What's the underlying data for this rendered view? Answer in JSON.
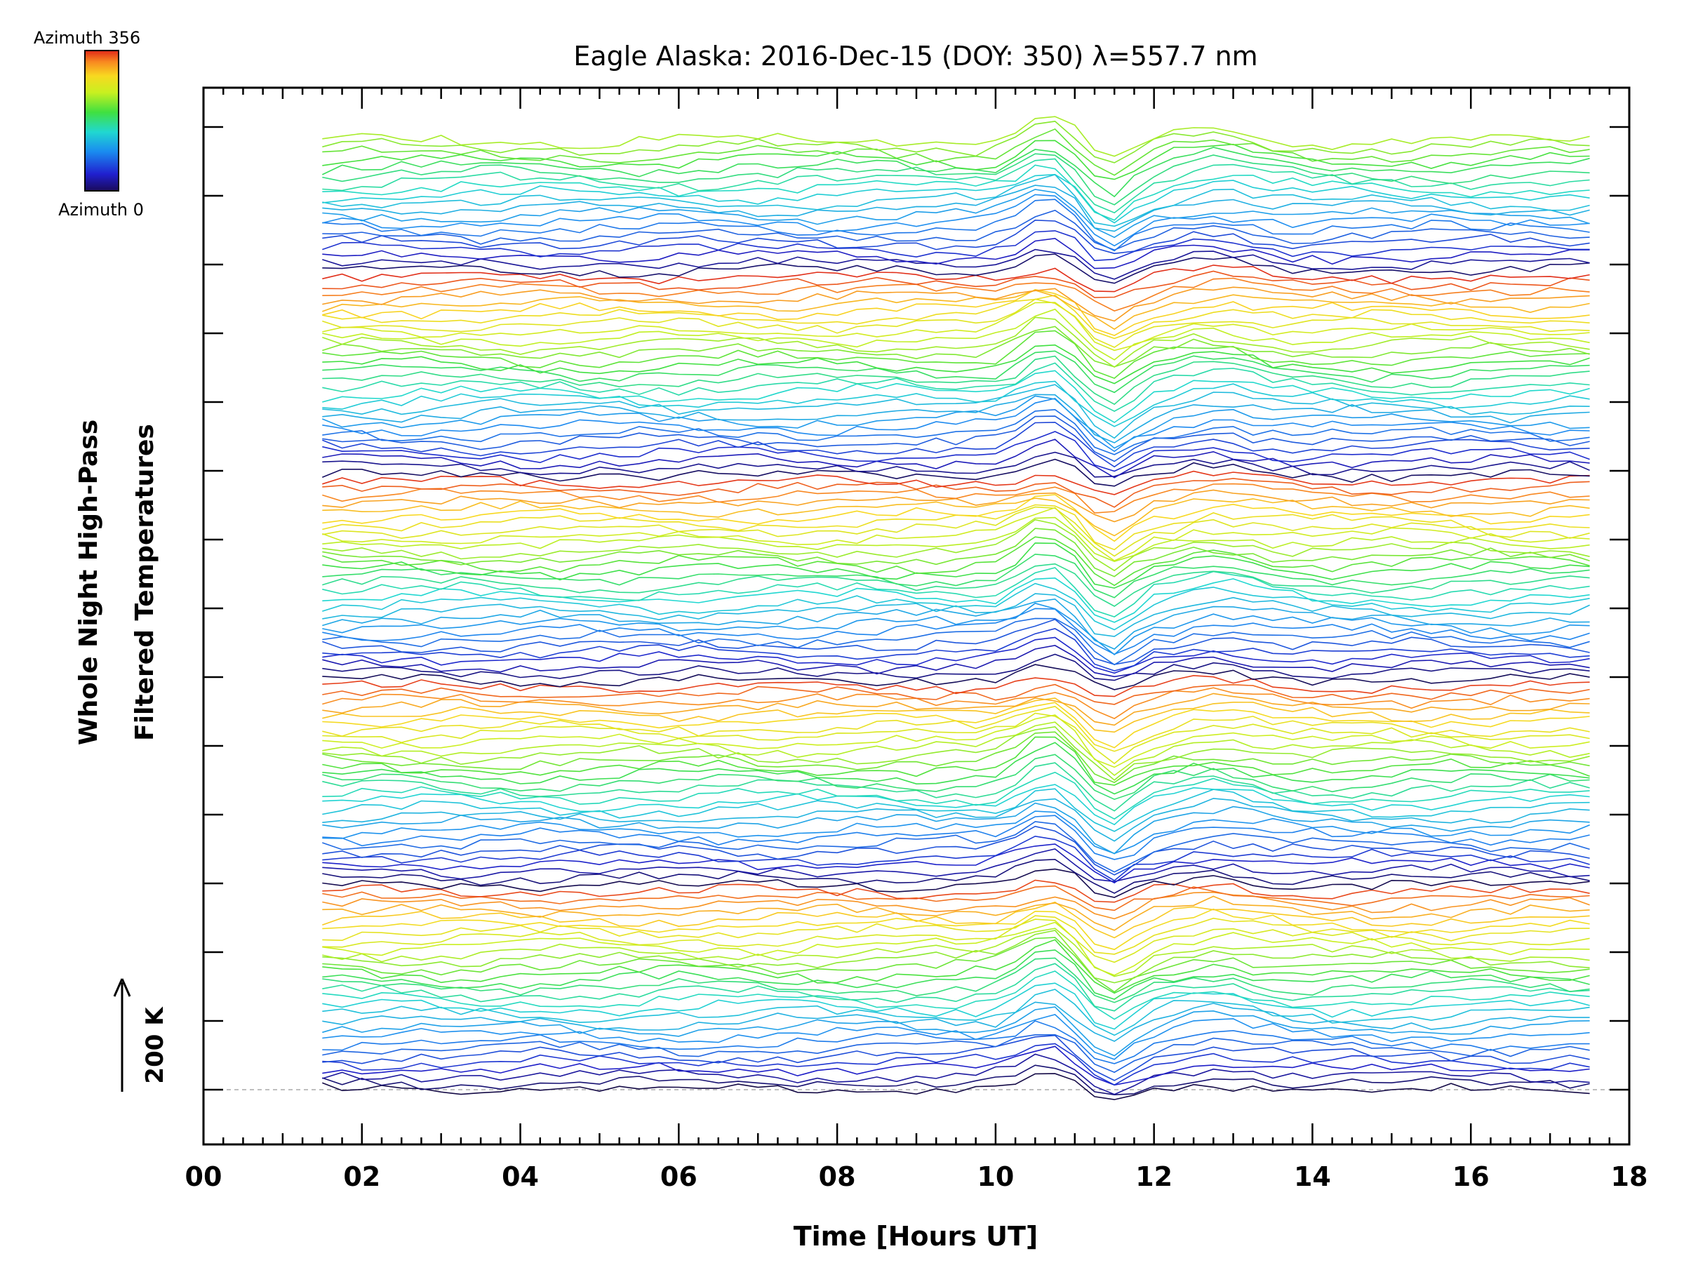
{
  "chart_data": {
    "type": "line",
    "title": "Eagle Alaska: 2016-Dec-15 (DOY: 350) λ=557.7 nm",
    "xlabel": "Time [Hours UT]",
    "ylabel_line1": "Whole Night High-Pass",
    "ylabel_line2": "Filtered Temperatures",
    "xlim": [
      0,
      18
    ],
    "x_ticks": [
      "00",
      "02",
      "04",
      "06",
      "08",
      "10",
      "12",
      "14",
      "16",
      "18"
    ],
    "scale_bar": {
      "label": "200 K",
      "arrow": "up"
    },
    "colorbar": {
      "top_label": "Azimuth 356",
      "bottom_label": "Azimuth 0",
      "colormap": "rainbow"
    },
    "time_range_hours": [
      1.5,
      17.5
    ],
    "time_step_hours": 0.25,
    "stacked_trace_count": 140,
    "azimuth_range_deg": [
      0,
      356
    ],
    "wave_event": {
      "peak_time_hours": 10.65,
      "trough_time_hours": 11.45,
      "secondary_peak_hours": 12.8
    },
    "colors": {
      "baseline": "#aaaaaa",
      "frame": "#000000"
    }
  }
}
